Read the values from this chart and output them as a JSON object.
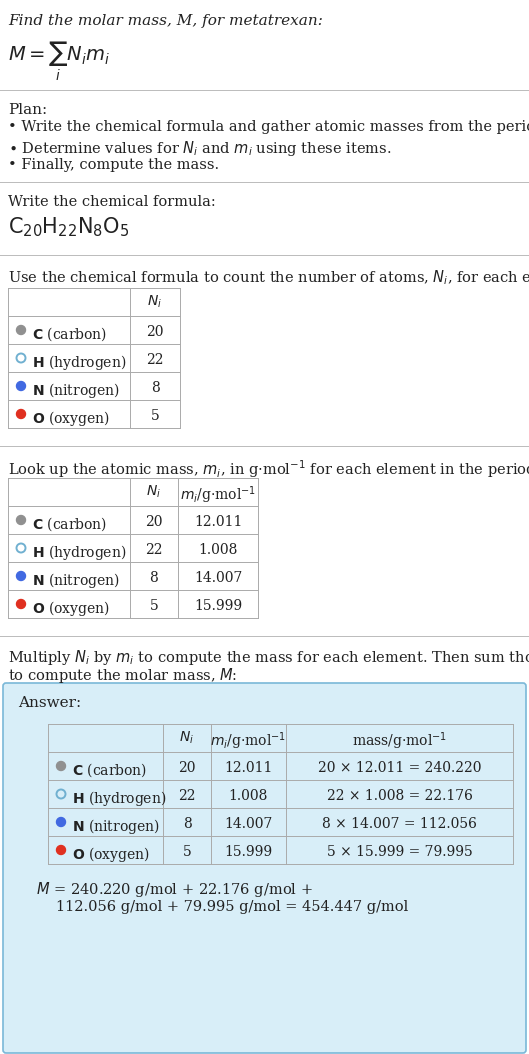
{
  "title_line": "Find the molar mass, M, for metatrexan:",
  "plan_header": "Plan:",
  "plan_bullets": [
    "• Write the chemical formula and gather atomic masses from the periodic table.",
    "• Determine values for N_i and m_i using these items.",
    "• Finally, compute the mass."
  ],
  "formula_section_header": "Write the chemical formula:",
  "elements": [
    "C (carbon)",
    "H (hydrogen)",
    "N (nitrogen)",
    "O (oxygen)"
  ],
  "element_colors": [
    "#909090",
    "#70b0d0",
    "#4169e1",
    "#e03020"
  ],
  "element_filled": [
    true,
    false,
    true,
    true
  ],
  "Ni": [
    20,
    22,
    8,
    5
  ],
  "mi": [
    12.011,
    1.008,
    14.007,
    15.999
  ],
  "mass_exprs": [
    "20 × 12.011 = 240.220",
    "22 × 1.008 = 22.176",
    "8 × 14.007 = 112.056",
    "5 × 15.999 = 79.995"
  ],
  "answer_box_color": "#d8eef8",
  "answer_box_border": "#7ab8d8",
  "final_answer_line1": "M = 240.220 g/mol + 22.176 g/mol +",
  "final_answer_line2": "112.056 g/mol + 79.995 g/mol = 454.447 g/mol",
  "bg_color": "#ffffff",
  "text_color": "#222222",
  "table_border_color": "#aaaaaa",
  "divider_color": "#bbbbbb"
}
